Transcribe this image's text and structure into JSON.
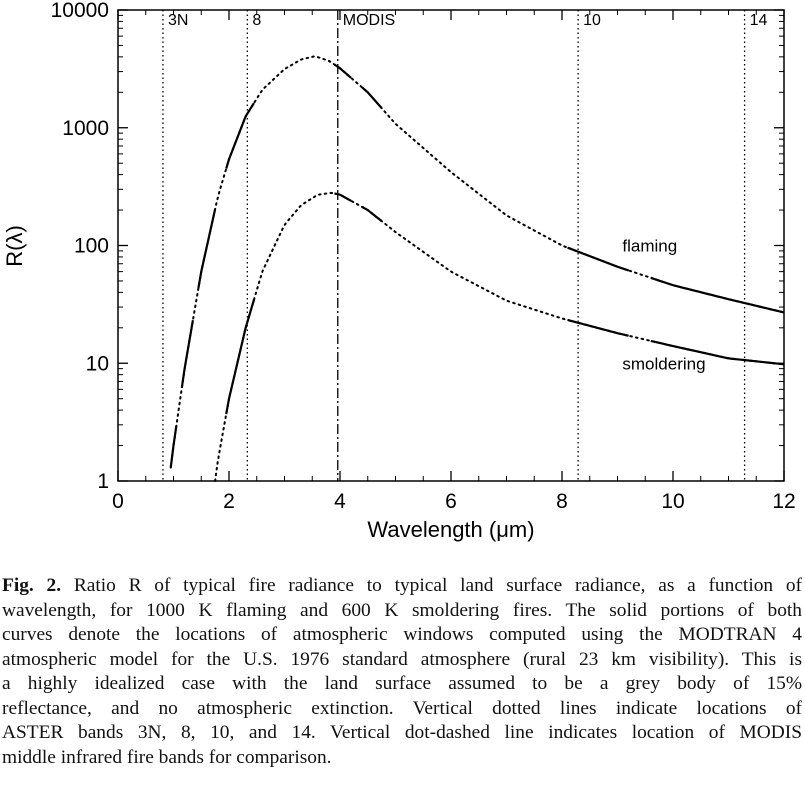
{
  "chart_data": {
    "type": "line",
    "title": "",
    "xlabel": "Wavelength (μm)",
    "ylabel": "R(λ)",
    "xlim": [
      0,
      12
    ],
    "ylim": [
      1,
      10000
    ],
    "yscale": "log",
    "x_ticks": [
      "0",
      "2",
      "4",
      "6",
      "8",
      "10",
      "12"
    ],
    "y_ticks": [
      "1",
      "10",
      "100",
      "1000",
      "10000"
    ],
    "grid": false,
    "legend": "none",
    "series": [
      {
        "name": "flaming",
        "temperature_K": 1000,
        "x": [
          0.95,
          1.0,
          1.2,
          1.5,
          1.8,
          2.0,
          2.3,
          2.6,
          3.0,
          3.3,
          3.55,
          3.8,
          4.0,
          4.5,
          5.0,
          6.0,
          7.0,
          8.0,
          9.0,
          10.0,
          11.0,
          12.0
        ],
        "values": [
          1.3,
          2.0,
          9,
          60,
          260,
          540,
          1250,
          2100,
          3150,
          3800,
          4050,
          3700,
          3200,
          2000,
          1080,
          420,
          180,
          100,
          66,
          46,
          35,
          27
        ],
        "solid_windows": [
          [
            0.95,
            1.05
          ],
          [
            1.15,
            1.35
          ],
          [
            1.45,
            1.75
          ],
          [
            1.95,
            2.45
          ],
          [
            3.9,
            4.2
          ],
          [
            4.4,
            4.75
          ],
          [
            8.1,
            9.2
          ],
          [
            9.6,
            12.0
          ]
        ]
      },
      {
        "name": "smoldering",
        "temperature_K": 600,
        "x": [
          1.75,
          1.8,
          2.0,
          2.3,
          2.6,
          3.0,
          3.3,
          3.6,
          3.85,
          4.0,
          4.5,
          5.0,
          6.0,
          7.0,
          8.0,
          9.0,
          10.0,
          11.0,
          12.0
        ],
        "values": [
          1.0,
          1.5,
          5,
          20,
          60,
          150,
          220,
          270,
          280,
          270,
          200,
          130,
          60,
          34,
          24,
          18,
          14,
          11,
          9.8
        ],
        "solid_windows": [
          [
            1.95,
            2.45
          ],
          [
            3.9,
            4.2
          ],
          [
            4.4,
            4.75
          ],
          [
            8.1,
            9.2
          ],
          [
            9.6,
            12.0
          ]
        ]
      }
    ],
    "bands": [
      {
        "label": "3N",
        "x": 0.81,
        "style": "dotted"
      },
      {
        "label": "8",
        "x": 2.33,
        "style": "dotted"
      },
      {
        "label": "MODIS",
        "x": 3.96,
        "style": "dot-dashed"
      },
      {
        "label": "10",
        "x": 8.29,
        "style": "dotted"
      },
      {
        "label": "14",
        "x": 11.29,
        "style": "dotted"
      }
    ],
    "annotations": [
      {
        "text": "flaming",
        "x": 8.8,
        "y": 100
      },
      {
        "text": "smoldering",
        "x": 8.8,
        "y": 10
      }
    ]
  },
  "caption": {
    "label": "Fig. 2.",
    "lines": [
      " Ratio R of typical fire radiance to typical land surface radiance, as a function of",
      "wavelength, for 1000 K flaming and 600 K smoldering fires. The solid portions of both",
      "curves denote the locations of atmospheric windows computed using the MODTRAN 4",
      "atmospheric model for the U.S. 1976 standard atmosphere (rural 23 km visibility). This is",
      "a highly idealized case with the land surface assumed to be a grey body of 15%",
      "reflectance, and no atmospheric extinction. Vertical dotted lines indicate locations of",
      "ASTER bands 3N, 8, 10, and 14. Vertical dot-dashed line indicates location of MODIS",
      "middle infrared fire bands for comparison."
    ]
  }
}
